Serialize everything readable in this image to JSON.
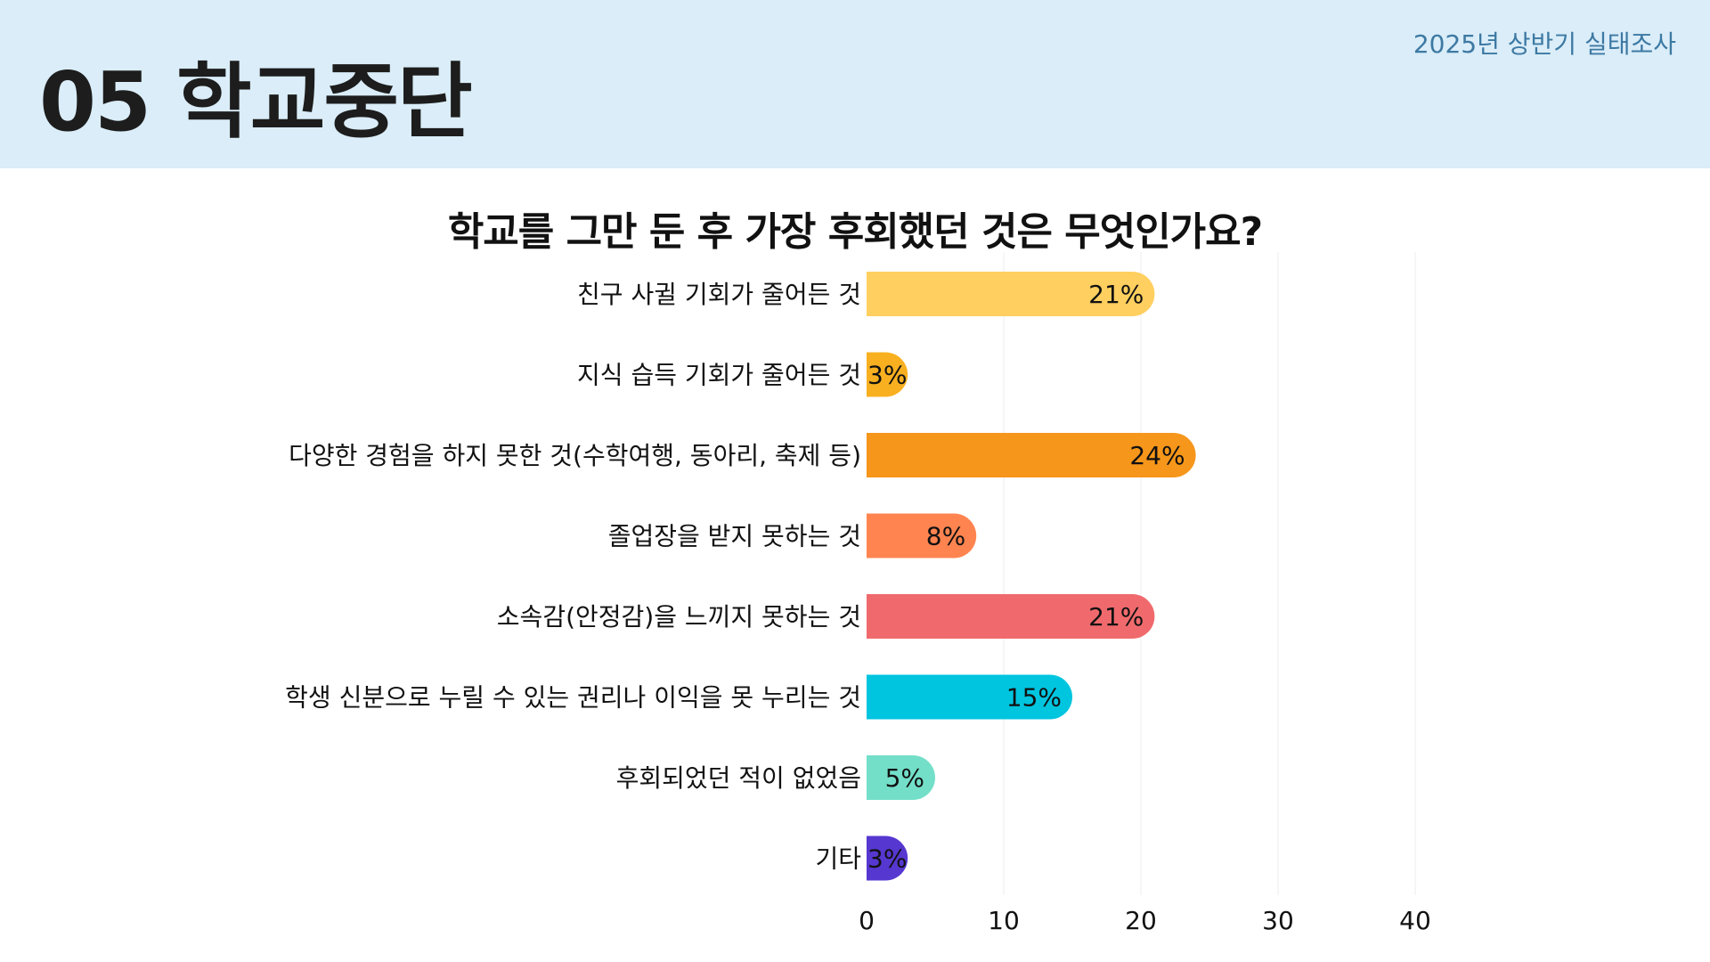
{
  "header": {
    "section_title": "05 학교중단",
    "survey_label": "2025년 상반기 실태조사",
    "background_color": "#daedf8"
  },
  "chart_data": {
    "type": "bar",
    "orientation": "horizontal",
    "title": "학교를 그만 둔 후 가장 후회했던 것은 무엇인가요?",
    "categories": [
      "친구 사귈 기회가 줄어든 것",
      "지식 습득 기회가 줄어든 것",
      "다양한 경험을 하지 못한 것(수학여행, 동아리, 축제 등)",
      "졸업장을 받지 못하는 것",
      "소속감(안정감)을 느끼지 못하는 것",
      "학생 신분으로 누릴 수 있는 권리나 이익을 못 누리는 것",
      "후회되었던 적이 없었음",
      "기타"
    ],
    "values": [
      21,
      3,
      24,
      8,
      21,
      15,
      5,
      3
    ],
    "value_labels": [
      "21%",
      "3%",
      "24%",
      "8%",
      "21%",
      "15%",
      "5%",
      "3%"
    ],
    "colors": [
      "#ffcf5f",
      "#f8b020",
      "#f6961a",
      "#ff8450",
      "#f06a6d",
      "#00c5df",
      "#73dfc9",
      "#5637d0"
    ],
    "xlim": [
      0,
      40
    ],
    "xticks": [
      0,
      10,
      20,
      30,
      40
    ],
    "grid": true,
    "legend": "none"
  }
}
